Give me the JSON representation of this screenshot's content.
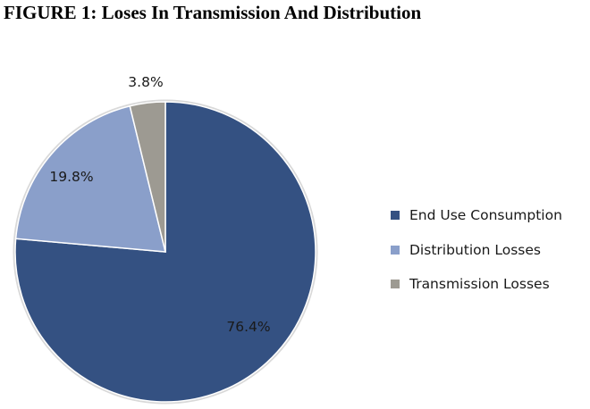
{
  "figure": {
    "title": "FIGURE 1: Loses In Transmission And Distribution"
  },
  "chart_data": {
    "type": "pie",
    "title": "",
    "slices": [
      {
        "name": "End Use Consumption",
        "value": 76.4,
        "label": "76.4%",
        "color": "#345182"
      },
      {
        "name": "Distribution Losses",
        "value": 19.8,
        "label": "19.8%",
        "color": "#8a9fca"
      },
      {
        "name": "Transmission Losses",
        "value": 3.8,
        "label": "3.8%",
        "color": "#9d9a92"
      }
    ],
    "legend_position": "right",
    "start_angle": "12 o'clock",
    "direction": "clockwise"
  },
  "colors": {
    "slice_border": "#ffffff",
    "pie_outline": "#d9d9d9"
  }
}
